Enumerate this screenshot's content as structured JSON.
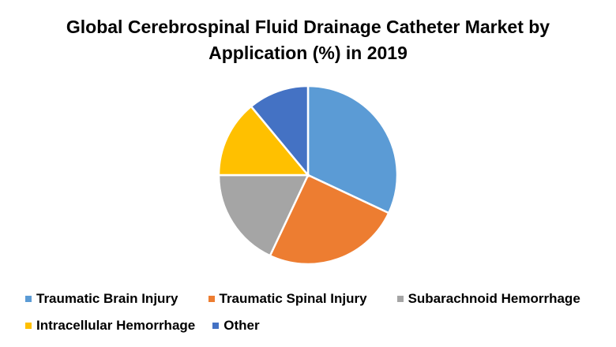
{
  "chart_data": {
    "type": "pie",
    "title": "Global Cerebrospinal Fluid Drainage Catheter Market by Application (%) in 2019",
    "title_lines": [
      "Global Cerebrospinal Fluid Drainage Catheter Market by",
      "Application (%) in 2019"
    ],
    "categories": [
      "Traumatic Brain Injury",
      "Traumatic Spinal Injury",
      "Subarachnoid Hemorrhage",
      "Intracellular Hemorrhage",
      "Other"
    ],
    "values": [
      32,
      25,
      18,
      14,
      11
    ],
    "colors": [
      "#5B9BD5",
      "#ED7D31",
      "#A5A5A5",
      "#FFC000",
      "#4472C4"
    ],
    "start_angle": "12 o'clock, clockwise",
    "legend_position": "bottom",
    "data_labels": false
  },
  "legend": {
    "rows": [
      [
        0,
        1,
        2
      ],
      [
        3,
        4
      ]
    ]
  }
}
